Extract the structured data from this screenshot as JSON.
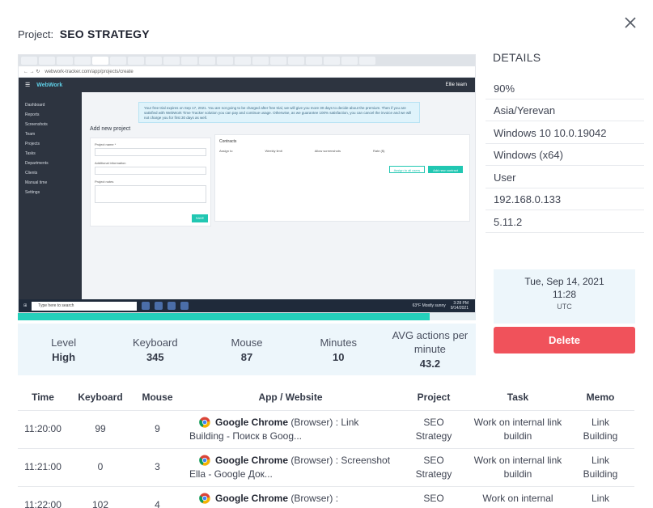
{
  "project": {
    "label": "Project:",
    "name": "SEO STRATEGY"
  },
  "screenshot": {
    "url": "webwork-tracker.com/app/projects/create",
    "app_logo": "WebWork",
    "user_label": "Ellie team",
    "nav": [
      "Dashboard",
      "Reports",
      "Screenshots",
      "Team",
      "Projects",
      "Tasks",
      "Departments",
      "Clients",
      "Manual time",
      "Settings"
    ],
    "notice": "Your free trial expires on Sep 17, 2021. You are not going to be charged after free trial, we will give you more 30 days to decide about the premium. Then if you are satisfied with WebWork Time Tracker solution you can pay and continue usage. Otherwise, as we guarantee 100% satisfaction, you can cancel the invoice and we will not charge you for first 30 days as well.",
    "page_title": "Add new project",
    "form_labels": [
      "Project name *",
      "Additional information",
      "Estimation (hours)",
      "Project notes"
    ],
    "save_label": "SAVE",
    "contracts_title": "Contracts",
    "contracts_cols": [
      "Assign to",
      "Weekly limit",
      "Allow screenshots",
      "Rate ($)"
    ],
    "contract_btns": [
      "Assign to all users",
      "Add new contract"
    ],
    "taskbar_search": "Type here to search",
    "weather": "63°F Mostly sunny",
    "clock_time": "3:28 PM",
    "clock_date": "9/14/2021",
    "activity_fraction": 0.9
  },
  "stats": [
    {
      "label": "Level",
      "value": "High"
    },
    {
      "label": "Keyboard",
      "value": "345"
    },
    {
      "label": "Mouse",
      "value": "87"
    },
    {
      "label": "Minutes",
      "value": "10"
    },
    {
      "label": "AVG actions per minute",
      "value": "43.2"
    }
  ],
  "details": {
    "title": "DETAILS",
    "items": [
      "90%",
      "Asia/Yerevan",
      "Windows 10 10.0.19042",
      "Windows (x64)",
      "User",
      "192.168.0.133",
      "5.11.2"
    ]
  },
  "date_card": {
    "date": "Tue, Sep 14, 2021",
    "time": "11:28",
    "tz": "UTC"
  },
  "delete_label": "Delete",
  "table": {
    "headers": [
      "Time",
      "Keyboard",
      "Mouse",
      "App / Website",
      "Project",
      "Task",
      "Memo"
    ],
    "rows": [
      {
        "time": "11:20:00",
        "keyboard": "99",
        "mouse": "9",
        "app_name": "Google Chrome",
        "app_detail": "(Browser) : Link Building - Поиск в Goog...",
        "project": "SEO Strategy",
        "task": "Work on internal link buildin",
        "memo": "Link Building"
      },
      {
        "time": "11:21:00",
        "keyboard": "0",
        "mouse": "3",
        "app_name": "Google Chrome",
        "app_detail": "(Browser) : Screenshot Ella - Google Док...",
        "project": "SEO Strategy",
        "task": "Work on internal link buildin",
        "memo": "Link Building"
      },
      {
        "time": "11:22:00",
        "keyboard": "102",
        "mouse": "4",
        "app_name": "Google Chrome",
        "app_detail": "(Browser) :",
        "project": "SEO",
        "task": "Work on internal",
        "memo": "Link"
      }
    ]
  }
}
